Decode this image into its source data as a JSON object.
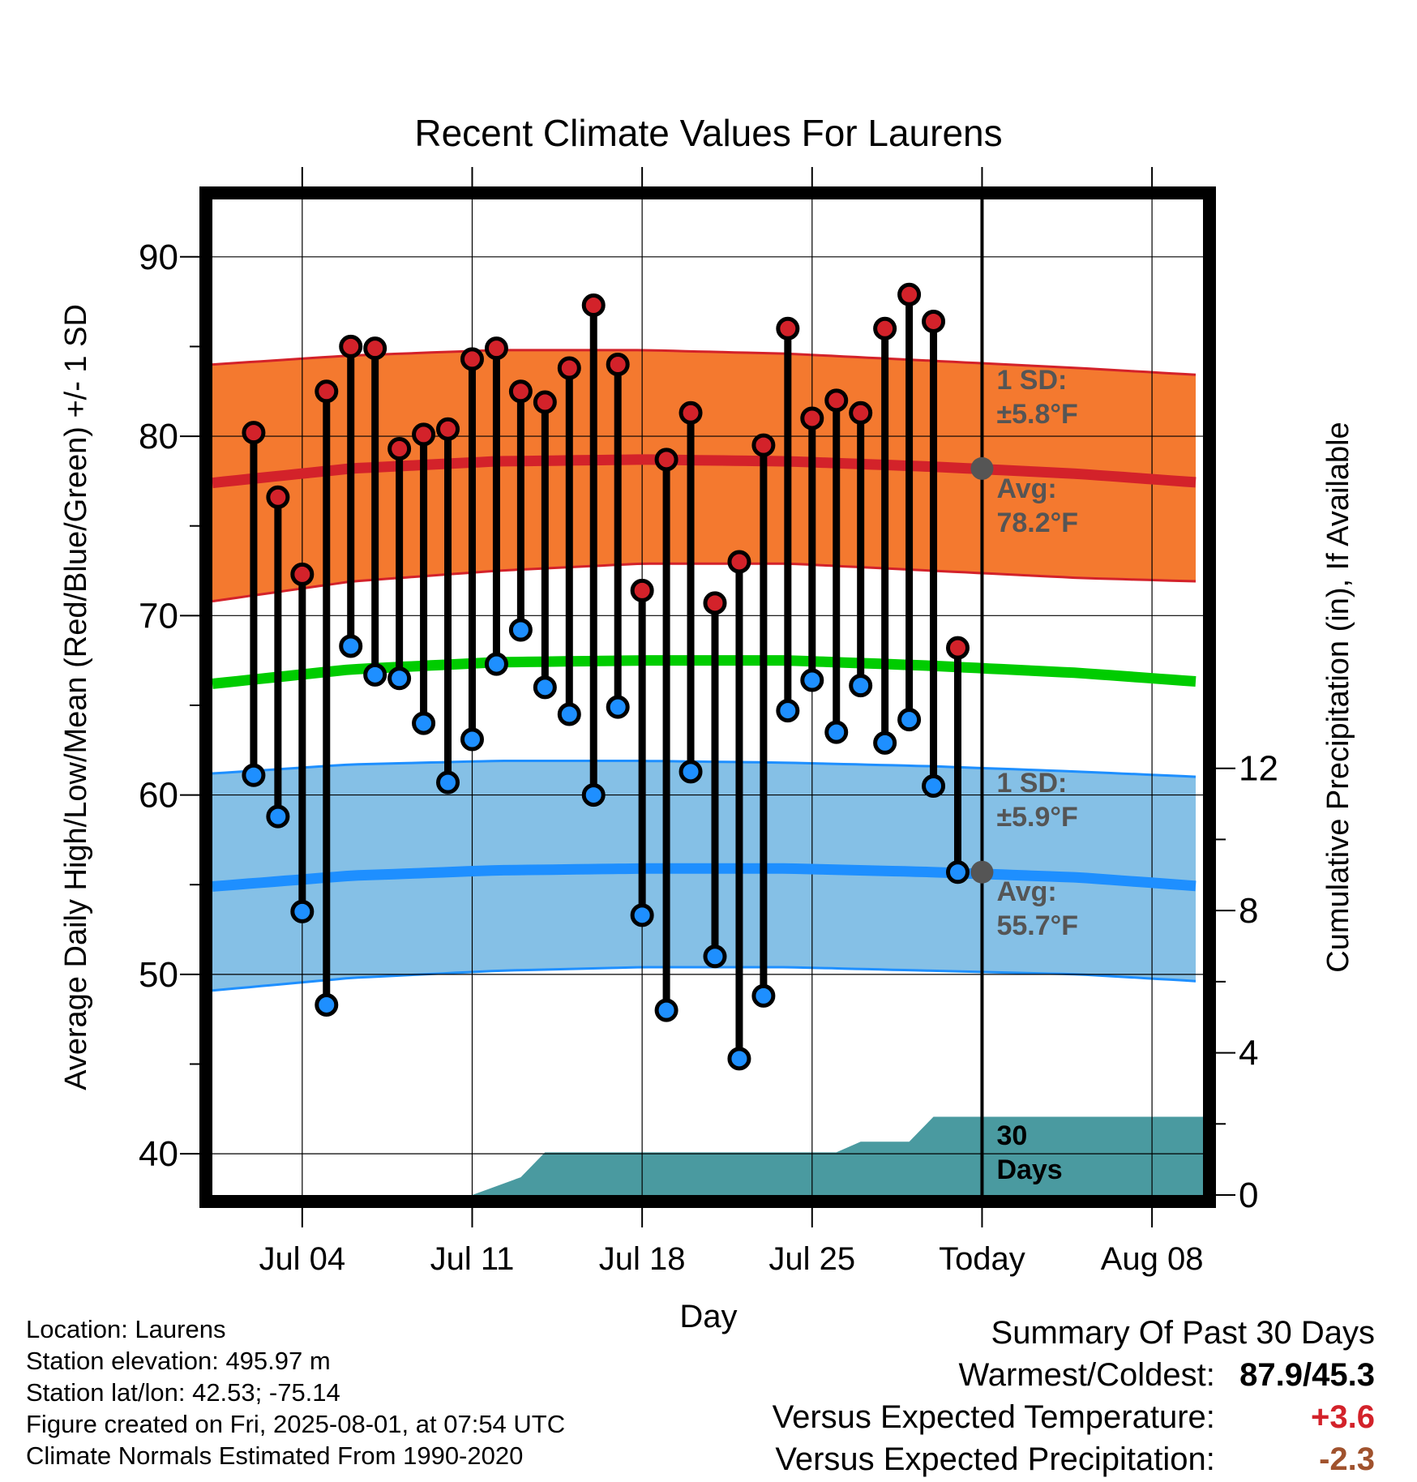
{
  "chart_data": {
    "type": "line",
    "title": "Recent Climate Values For Laurens",
    "xlabel": "Day",
    "ylabel": "Average Daily High/Low/Mean (Red/Blue/Green) +/- 1 SD",
    "ylabel_right": "Cumulative Precipitation (in), If Available",
    "ylim": [
      37.7,
      93.2
    ],
    "ylim_right": [
      0,
      28
    ],
    "x_ticks": [
      {
        "day": 4,
        "label": "Jul 04"
      },
      {
        "day": 11,
        "label": "Jul 11"
      },
      {
        "day": 18,
        "label": "Jul 18"
      },
      {
        "day": 25,
        "label": "Jul 25"
      },
      {
        "day": 32,
        "label": "Today"
      },
      {
        "day": 39,
        "label": "Aug 08"
      }
    ],
    "y_ticks": [
      40,
      50,
      60,
      70,
      80,
      90
    ],
    "y_ticks_right": [
      0,
      4,
      8,
      12
    ],
    "xlim": [
      0.3,
      41.1
    ],
    "grid": true,
    "today_day": 32,
    "daily_high": [
      80.2,
      76.6,
      72.3,
      82.5,
      85.0,
      84.9,
      79.3,
      80.1,
      80.4,
      84.3,
      84.9,
      82.5,
      81.9,
      83.8,
      87.3,
      84.0,
      71.4,
      78.7,
      81.3,
      70.7,
      73.0,
      79.5,
      86.0,
      81.0,
      82.0,
      81.3,
      86.0,
      87.9,
      86.4,
      68.2
    ],
    "daily_low": [
      61.1,
      58.8,
      53.5,
      48.3,
      68.3,
      66.7,
      66.5,
      64.0,
      60.7,
      63.1,
      67.3,
      69.2,
      66.0,
      64.5,
      60.0,
      64.9,
      53.3,
      48.0,
      61.3,
      51.0,
      45.3,
      48.8,
      64.7,
      66.4,
      63.5,
      66.1,
      62.9,
      64.2,
      60.5,
      55.7
    ],
    "daily_days_start": 2,
    "normals": {
      "day": [
        0.3,
        6,
        12,
        18,
        24,
        30,
        36,
        41.1
      ],
      "high_avg": [
        77.4,
        78.2,
        78.6,
        78.7,
        78.6,
        78.3,
        77.9,
        77.4
      ],
      "high_upper": [
        84.0,
        84.5,
        84.8,
        84.8,
        84.6,
        84.2,
        83.8,
        83.4
      ],
      "high_lower": [
        70.8,
        71.9,
        72.5,
        72.9,
        72.9,
        72.5,
        72.1,
        71.9
      ],
      "mean_avg": [
        66.2,
        67.0,
        67.4,
        67.5,
        67.5,
        67.2,
        66.8,
        66.3
      ],
      "low_avg": [
        54.9,
        55.5,
        55.8,
        55.9,
        55.9,
        55.7,
        55.4,
        54.9
      ],
      "low_upper": [
        61.2,
        61.7,
        61.9,
        61.9,
        61.8,
        61.6,
        61.3,
        61.0
      ],
      "low_lower": [
        49.1,
        49.8,
        50.2,
        50.4,
        50.4,
        50.2,
        50.0,
        49.6
      ]
    },
    "precip_cum": {
      "day": [
        11,
        13,
        14,
        26,
        27,
        28,
        29,
        30,
        31,
        32,
        41.1
      ],
      "value": [
        0,
        0.5,
        1.2,
        1.2,
        1.5,
        1.5,
        1.5,
        2.2,
        2.2,
        2.2,
        2.2
      ]
    },
    "annotations": {
      "high_sd": [
        "1 SD:",
        "±5.8°F"
      ],
      "high_avg": [
        "Avg:",
        "78.2°F"
      ],
      "low_sd": [
        "1 SD:",
        "±5.9°F"
      ],
      "low_avg": [
        "Avg:",
        "55.7°F"
      ],
      "precip_days": [
        "30",
        "Days"
      ]
    },
    "today_values": {
      "high_avg": 78.2,
      "low_avg": 55.7
    },
    "colors": {
      "high_band": "#f4792f",
      "high_line": "#d3222a",
      "mean_line": "#00cc00",
      "low_band": "#85c0e6",
      "low_line": "#1e8fff",
      "precip_fill": "#4a9aa0",
      "high_dot": "#d3222a",
      "low_dot": "#1e8fff"
    }
  },
  "info": {
    "location": "Location: Laurens",
    "elevation": "Station elevation: 495.97 m",
    "latlon": "Station lat/lon: 42.53; -75.14",
    "created": "Figure created on Fri, 2025-08-01, at 07:54 UTC",
    "normals": "Climate Normals Estimated From 1990-2020"
  },
  "summary": {
    "heading": "Summary Of Past 30 Days",
    "warm_cold_label": "Warmest/Coldest:",
    "warm_cold_value": "87.9/45.3",
    "temp_label": "Versus Expected Temperature:",
    "temp_value": "+3.6",
    "temp_color": "#d3222a",
    "precip_label": "Versus Expected Precipitation:",
    "precip_value": "-2.3",
    "precip_color": "#a0522d"
  }
}
